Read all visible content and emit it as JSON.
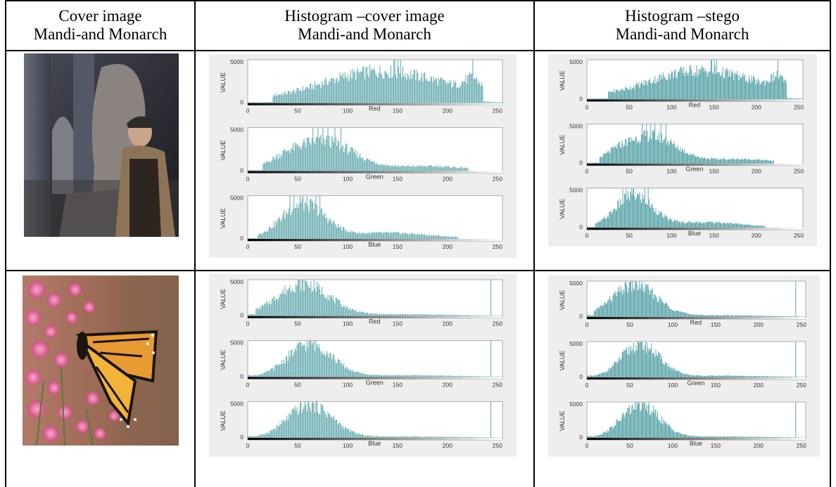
{
  "headers": {
    "col1": [
      "Cover image",
      "Mandi-and Monarch"
    ],
    "col2": [
      "Histogram –cover image",
      "Mandi-and Monarch"
    ],
    "col3": [
      "Histogram –stego",
      "Mandi-and Monarch"
    ]
  },
  "histogram_labels": {
    "ylabel": "VALUE",
    "channels": [
      "Red",
      "Green",
      "Blue"
    ],
    "y_tick": "5000",
    "y_zero": "0",
    "x_ticks": [
      "0",
      "50",
      "100",
      "150",
      "200",
      "250"
    ]
  },
  "chart_data": [
    {
      "type": "bar",
      "row": "Mandi",
      "source": "cover",
      "ylabel": "VALUE",
      "xlabel": "Red",
      "xlim": [
        0,
        255
      ],
      "ylim": [
        0,
        5000
      ],
      "profile": "mandi-red"
    },
    {
      "type": "bar",
      "row": "Mandi",
      "source": "cover",
      "ylabel": "VALUE",
      "xlabel": "Green",
      "xlim": [
        0,
        255
      ],
      "ylim": [
        0,
        5000
      ],
      "profile": "mandi-green"
    },
    {
      "type": "bar",
      "row": "Mandi",
      "source": "cover",
      "ylabel": "VALUE",
      "xlabel": "Blue",
      "xlim": [
        0,
        255
      ],
      "ylim": [
        0,
        5000
      ],
      "profile": "mandi-blue"
    },
    {
      "type": "bar",
      "row": "Mandi",
      "source": "stego",
      "ylabel": "VALUE",
      "xlabel": "Red",
      "xlim": [
        0,
        255
      ],
      "ylim": [
        0,
        5000
      ],
      "profile": "mandi-red"
    },
    {
      "type": "bar",
      "row": "Mandi",
      "source": "stego",
      "ylabel": "VALUE",
      "xlabel": "Green",
      "xlim": [
        0,
        255
      ],
      "ylim": [
        0,
        5000
      ],
      "profile": "mandi-green"
    },
    {
      "type": "bar",
      "row": "Mandi",
      "source": "stego",
      "ylabel": "VALUE",
      "xlabel": "Blue",
      "xlim": [
        0,
        255
      ],
      "ylim": [
        0,
        5000
      ],
      "profile": "mandi-blue"
    },
    {
      "type": "bar",
      "row": "Monarch",
      "source": "cover",
      "ylabel": "VALUE",
      "xlabel": "Red",
      "xlim": [
        0,
        255
      ],
      "ylim": [
        0,
        5000
      ],
      "profile": "monarch-red"
    },
    {
      "type": "bar",
      "row": "Monarch",
      "source": "cover",
      "ylabel": "VALUE",
      "xlabel": "Green",
      "xlim": [
        0,
        255
      ],
      "ylim": [
        0,
        5000
      ],
      "profile": "monarch-green"
    },
    {
      "type": "bar",
      "row": "Monarch",
      "source": "cover",
      "ylabel": "VALUE",
      "xlabel": "Blue",
      "xlim": [
        0,
        255
      ],
      "ylim": [
        0,
        5000
      ],
      "profile": "monarch-blue"
    },
    {
      "type": "bar",
      "row": "Monarch",
      "source": "stego",
      "ylabel": "VALUE",
      "xlabel": "Red",
      "xlim": [
        0,
        255
      ],
      "ylim": [
        0,
        5000
      ],
      "profile": "monarch-red"
    },
    {
      "type": "bar",
      "row": "Monarch",
      "source": "stego",
      "ylabel": "VALUE",
      "xlabel": "Green",
      "xlim": [
        0,
        255
      ],
      "ylim": [
        0,
        5000
      ],
      "profile": "monarch-green"
    },
    {
      "type": "bar",
      "row": "Monarch",
      "source": "stego",
      "ylabel": "VALUE",
      "xlabel": "Blue",
      "xlim": [
        0,
        255
      ],
      "ylim": [
        0,
        5000
      ],
      "profile": "monarch-blue"
    }
  ],
  "colors": {
    "bar": "#4f9ea3",
    "panel": "#eeeeee",
    "border": "#000000"
  }
}
